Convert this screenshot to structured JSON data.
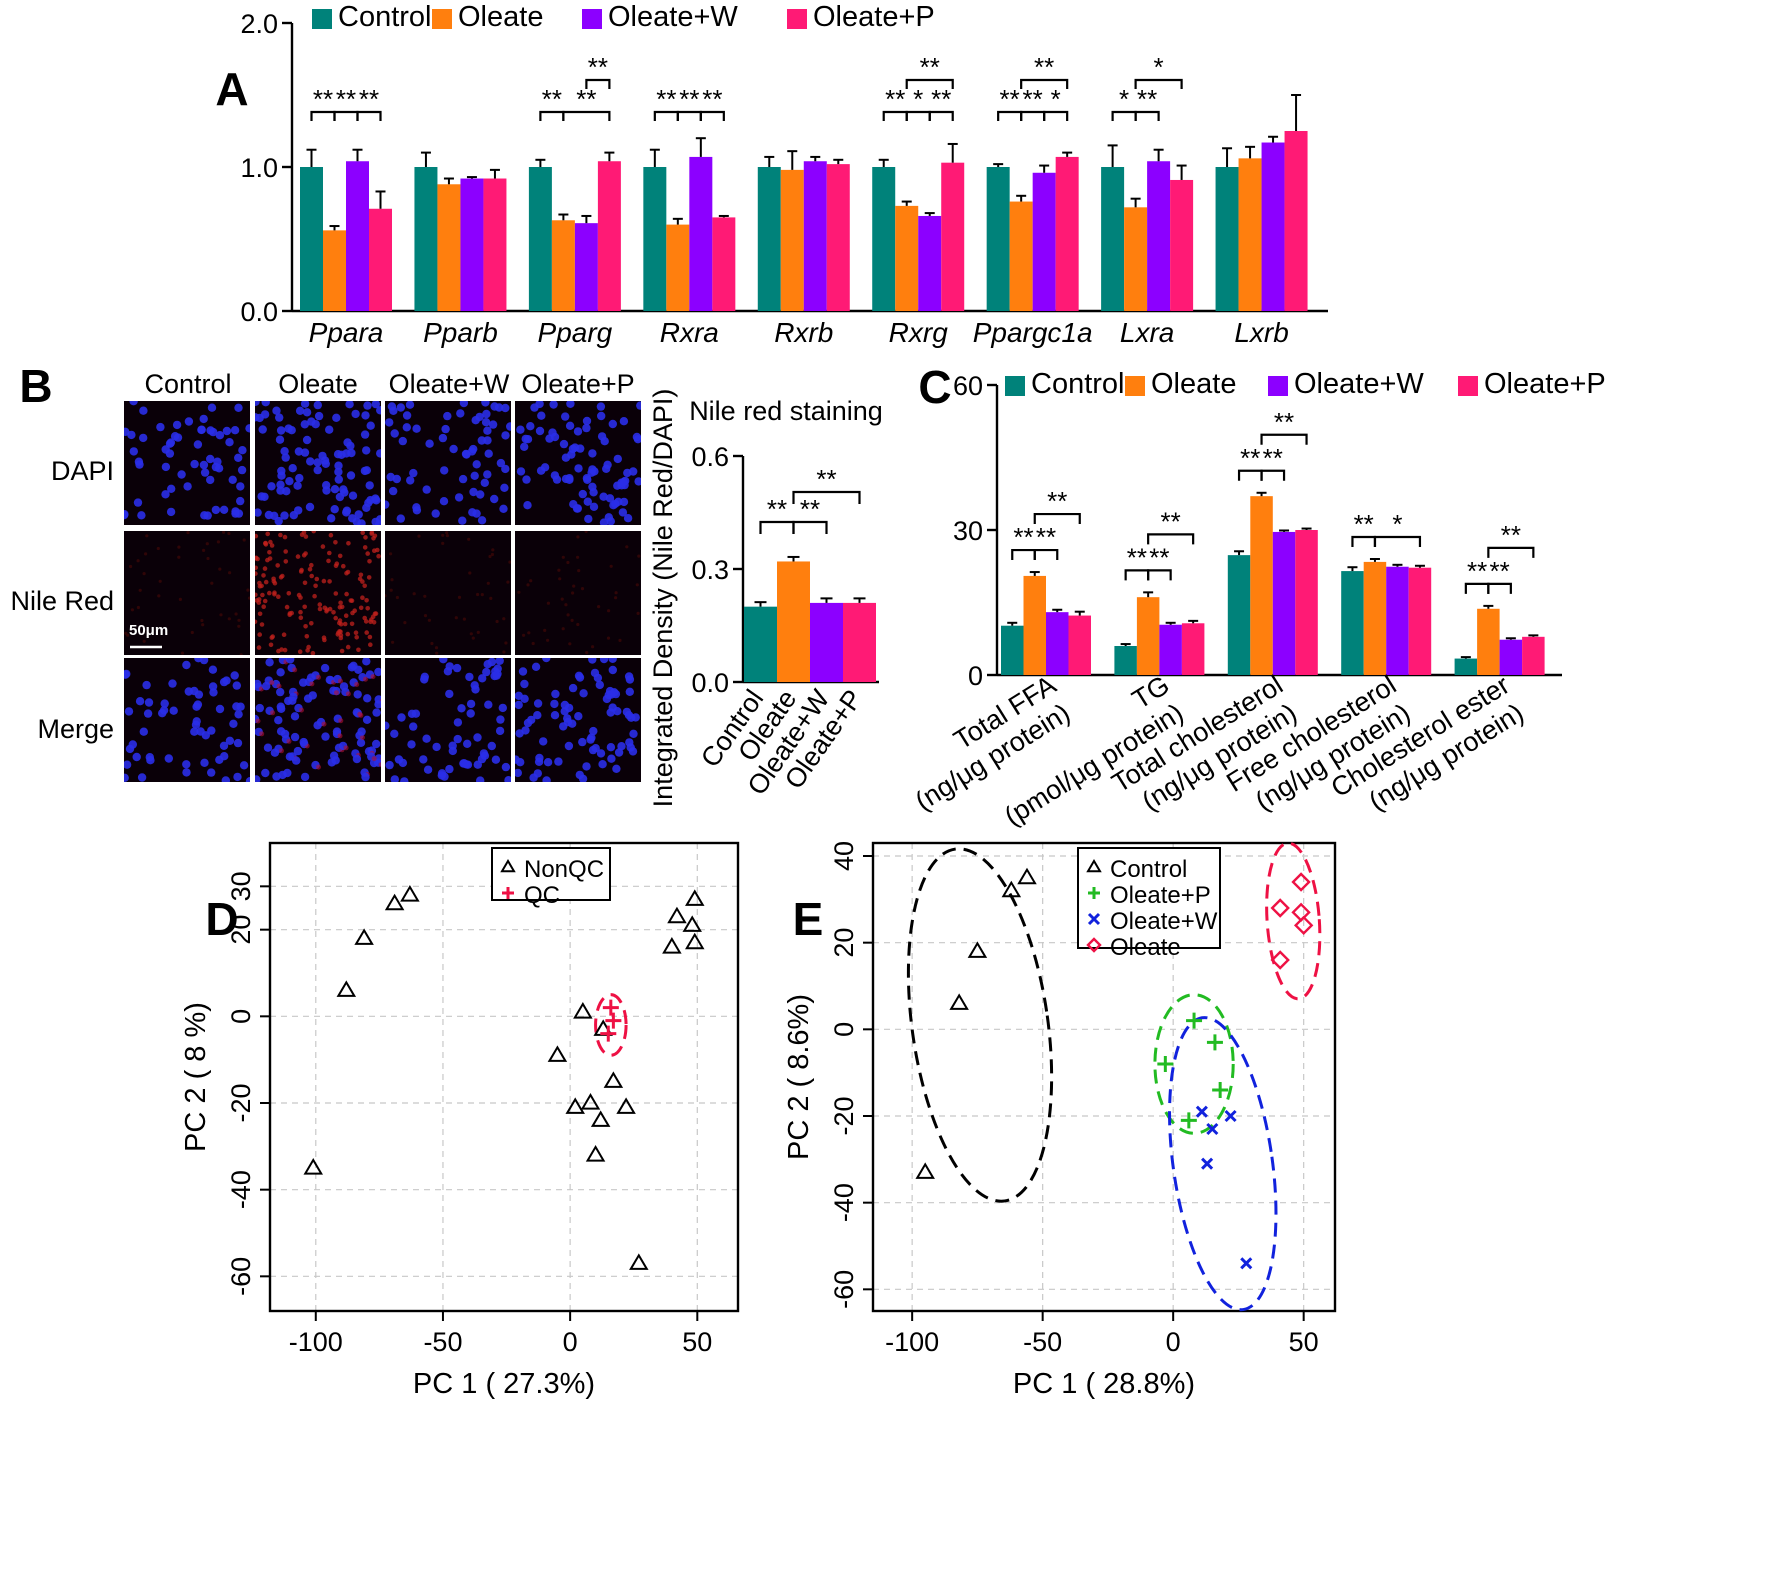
{
  "colors": {
    "control": "#00827a",
    "oleate": "#ff7f0e",
    "oleate_w": "#8c00ff",
    "oleate_p": "#ff1a75",
    "nonqc": "#000000",
    "qc": "#ee1144",
    "pca_control": "#000000",
    "pca_oleate_p": "#22bb22",
    "pca_oleate_w": "#1122dd",
    "pca_oleate": "#ee1144"
  },
  "chart_data": [
    {
      "id": "A",
      "type": "bar",
      "panel_label": "A",
      "legend": [
        "Control",
        "Oleate",
        "Oleate+W",
        "Oleate+P"
      ],
      "categories": [
        "Ppara",
        "Pparb",
        "Pparg",
        "Rxra",
        "Rxrb",
        "Rxrg",
        "Ppargc1a",
        "Lxra",
        "Lxrb"
      ],
      "ylim": [
        0,
        2.0
      ],
      "yticks": [
        "0.0",
        "1.0",
        "2.0"
      ],
      "series": [
        {
          "name": "Control",
          "values": [
            1.0,
            1.0,
            1.0,
            1.0,
            1.0,
            1.0,
            1.0,
            1.0,
            1.0
          ],
          "errors": [
            0.12,
            0.1,
            0.05,
            0.12,
            0.07,
            0.05,
            0.02,
            0.15,
            0.13
          ]
        },
        {
          "name": "Oleate",
          "values": [
            0.56,
            0.88,
            0.63,
            0.6,
            0.98,
            0.73,
            0.76,
            0.72,
            1.06
          ],
          "errors": [
            0.03,
            0.04,
            0.04,
            0.04,
            0.13,
            0.03,
            0.04,
            0.06,
            0.08
          ]
        },
        {
          "name": "Oleate+W",
          "values": [
            1.04,
            0.92,
            0.61,
            1.07,
            1.04,
            0.66,
            0.96,
            1.04,
            1.17
          ],
          "errors": [
            0.08,
            0.01,
            0.05,
            0.13,
            0.03,
            0.02,
            0.05,
            0.08,
            0.04
          ]
        },
        {
          "name": "Oleate+P",
          "values": [
            0.71,
            0.92,
            1.04,
            0.65,
            1.02,
            1.03,
            1.07,
            0.91,
            1.25
          ],
          "errors": [
            0.12,
            0.06,
            0.06,
            0.01,
            0.03,
            0.13,
            0.03,
            0.1,
            0.25
          ]
        }
      ],
      "significance": [
        {
          "cat": 0,
          "from": 0,
          "to": 1,
          "label": "**",
          "level": 0
        },
        {
          "cat": 0,
          "from": 1,
          "to": 2,
          "label": "**",
          "level": 0
        },
        {
          "cat": 0,
          "from": 2,
          "to": 3,
          "label": "**",
          "level": 0
        },
        {
          "cat": 2,
          "from": 0,
          "to": 1,
          "label": "**",
          "level": 0
        },
        {
          "cat": 2,
          "from": 1,
          "to": 3,
          "label": "**",
          "level": 0
        },
        {
          "cat": 2,
          "from": 2,
          "to": 3,
          "label": "**",
          "level": 1
        },
        {
          "cat": 3,
          "from": 0,
          "to": 1,
          "label": "**",
          "level": 0
        },
        {
          "cat": 3,
          "from": 1,
          "to": 2,
          "label": "**",
          "level": 0
        },
        {
          "cat": 3,
          "from": 2,
          "to": 3,
          "label": "**",
          "level": 0
        },
        {
          "cat": 5,
          "from": 0,
          "to": 1,
          "label": "**",
          "level": 0
        },
        {
          "cat": 5,
          "from": 1,
          "to": 2,
          "label": "*",
          "level": 0
        },
        {
          "cat": 5,
          "from": 2,
          "to": 3,
          "label": "**",
          "level": 0
        },
        {
          "cat": 5,
          "from": 1,
          "to": 3,
          "label": "**",
          "level": 1
        },
        {
          "cat": 6,
          "from": 0,
          "to": 1,
          "label": "**",
          "level": 0
        },
        {
          "cat": 6,
          "from": 1,
          "to": 2,
          "label": "**",
          "level": 0
        },
        {
          "cat": 6,
          "from": 2,
          "to": 3,
          "label": "*",
          "level": 0
        },
        {
          "cat": 6,
          "from": 1,
          "to": 3,
          "label": "**",
          "level": 1
        },
        {
          "cat": 7,
          "from": 0,
          "to": 1,
          "label": "*",
          "level": 0
        },
        {
          "cat": 7,
          "from": 1,
          "to": 2,
          "label": "**",
          "level": 0
        },
        {
          "cat": 7,
          "from": 1,
          "to": 3,
          "label": "*",
          "level": 1
        }
      ]
    },
    {
      "id": "B_micro",
      "type": "image-grid",
      "panel_label": "B",
      "columns": [
        "Control",
        "Oleate",
        "Oleate+W",
        "Oleate+P"
      ],
      "rows": [
        "DAPI",
        "Nile Red",
        "Merge"
      ],
      "scale_bar": "50μm"
    },
    {
      "id": "B_bar",
      "type": "bar",
      "title": "Nile red staining",
      "ylabel": "Integrated Density (Nile Red/DAPI)",
      "categories": [
        "Control",
        "Oleate",
        "Oleate+W",
        "Oleate+P"
      ],
      "values": [
        0.2,
        0.32,
        0.21,
        0.21
      ],
      "errors": [
        0.012,
        0.012,
        0.012,
        0.012
      ],
      "ylim": [
        0,
        0.6
      ],
      "yticks": [
        "0.0",
        "0.3",
        "0.6"
      ],
      "significance": [
        {
          "from": 0,
          "to": 1,
          "label": "**",
          "level": 0
        },
        {
          "from": 1,
          "to": 2,
          "label": "**",
          "level": 0
        },
        {
          "from": 1,
          "to": 3,
          "label": "**",
          "level": 1
        }
      ]
    },
    {
      "id": "C",
      "type": "bar",
      "panel_label": "C",
      "legend": [
        "Control",
        "Oleate",
        "Oleate+W",
        "Oleate+P"
      ],
      "categories": [
        [
          "Total FFA",
          "(ng/μg protein)"
        ],
        [
          "TG",
          "(pmol/μg protein)"
        ],
        [
          "Total cholesterol",
          "(ng/μg protein)"
        ],
        [
          "Free cholesterol",
          "(ng/μg protein)"
        ],
        [
          "Cholesterol ester",
          "(ng/μg protein)"
        ]
      ],
      "ylim": [
        0,
        60
      ],
      "yticks": [
        "0",
        "30",
        "60"
      ],
      "series": [
        {
          "name": "Control",
          "values": [
            10.2,
            6.0,
            24.8,
            21.5,
            3.4
          ],
          "errors": [
            0.6,
            0.4,
            0.8,
            0.8,
            0.3
          ]
        },
        {
          "name": "Oleate",
          "values": [
            20.5,
            16.1,
            37.0,
            23.4,
            13.7
          ],
          "errors": [
            0.8,
            1.0,
            0.7,
            0.6,
            0.6
          ]
        },
        {
          "name": "Oleate+W",
          "values": [
            13.0,
            10.4,
            29.6,
            22.4,
            7.3
          ],
          "errors": [
            0.5,
            0.4,
            0.3,
            0.4,
            0.3
          ]
        },
        {
          "name": "Oleate+P",
          "values": [
            12.3,
            10.7,
            30.0,
            22.2,
            7.9
          ],
          "errors": [
            0.8,
            0.5,
            0.3,
            0.4,
            0.3
          ]
        }
      ],
      "significance": [
        {
          "cat": 0,
          "from": 0,
          "to": 1,
          "label": "**",
          "level": 0
        },
        {
          "cat": 0,
          "from": 1,
          "to": 2,
          "label": "**",
          "level": 0
        },
        {
          "cat": 0,
          "from": 1,
          "to": 3,
          "label": "**",
          "level": 1
        },
        {
          "cat": 1,
          "from": 0,
          "to": 1,
          "label": "**",
          "level": 0
        },
        {
          "cat": 1,
          "from": 1,
          "to": 2,
          "label": "**",
          "level": 0
        },
        {
          "cat": 1,
          "from": 1,
          "to": 3,
          "label": "**",
          "level": 1
        },
        {
          "cat": 2,
          "from": 0,
          "to": 1,
          "label": "**",
          "level": 0
        },
        {
          "cat": 2,
          "from": 1,
          "to": 2,
          "label": "**",
          "level": 0
        },
        {
          "cat": 2,
          "from": 1,
          "to": 3,
          "label": "**",
          "level": 1
        },
        {
          "cat": 3,
          "from": 0,
          "to": 1,
          "label": "**",
          "level": 0
        },
        {
          "cat": 3,
          "from": 1,
          "to": 3,
          "label": "*",
          "level": 0
        },
        {
          "cat": 4,
          "from": 0,
          "to": 1,
          "label": "**",
          "level": 0
        },
        {
          "cat": 4,
          "from": 1,
          "to": 2,
          "label": "**",
          "level": 0
        },
        {
          "cat": 4,
          "from": 1,
          "to": 3,
          "label": "**",
          "level": 1
        }
      ]
    },
    {
      "id": "D",
      "type": "scatter",
      "panel_label": "D",
      "xlabel": "PC 1 ( 27.3%)",
      "ylabel": "PC 2 ( 8 %)",
      "xlim": [
        -118,
        66
      ],
      "ylim": [
        -68,
        40
      ],
      "xticks": [
        "-100",
        "-50",
        "0",
        "50"
      ],
      "yticks": [
        "-60",
        "-40",
        "-20",
        "0",
        "20",
        "30"
      ],
      "series": [
        {
          "name": "NonQC",
          "marker": "triangle",
          "points": [
            [
              -63,
              28
            ],
            [
              -69,
              26
            ],
            [
              -81,
              18
            ],
            [
              -88,
              6
            ],
            [
              -101,
              -35
            ],
            [
              49,
              27
            ],
            [
              42,
              23
            ],
            [
              48,
              21
            ],
            [
              49,
              17
            ],
            [
              40,
              16
            ],
            [
              5,
              1
            ],
            [
              -5,
              -9
            ],
            [
              13,
              -3
            ],
            [
              17,
              -15
            ],
            [
              2,
              -21
            ],
            [
              8,
              -20
            ],
            [
              12,
              -24
            ],
            [
              22,
              -21
            ],
            [
              10,
              -32
            ],
            [
              27,
              -57
            ]
          ]
        },
        {
          "name": "QC",
          "marker": "cross",
          "points": [
            [
              16,
              2
            ],
            [
              17,
              -1
            ],
            [
              15,
              -4
            ]
          ]
        }
      ],
      "ellipses": [
        {
          "series": "QC",
          "cx": 16,
          "cy": -2,
          "rx": 6,
          "ry": 7
        }
      ]
    },
    {
      "id": "E",
      "type": "scatter",
      "panel_label": "E",
      "xlabel": "PC 1 ( 28.8%)",
      "ylabel": "PC 2 ( 8.6%)",
      "xlim": [
        -115,
        62
      ],
      "ylim": [
        -65,
        43
      ],
      "xticks": [
        "-100",
        "-50",
        "0",
        "50"
      ],
      "yticks": [
        "-60",
        "-40",
        "-20",
        "0",
        "20",
        "40"
      ],
      "series": [
        {
          "name": "Control",
          "marker": "triangle",
          "points": [
            [
              -56,
              35
            ],
            [
              -62,
              32
            ],
            [
              -75,
              18
            ],
            [
              -82,
              6
            ],
            [
              -95,
              -33
            ]
          ]
        },
        {
          "name": "Oleate+P",
          "marker": "plus",
          "points": [
            [
              8,
              2
            ],
            [
              16,
              -3
            ],
            [
              -3,
              -8
            ],
            [
              18,
              -14
            ],
            [
              6,
              -21
            ]
          ]
        },
        {
          "name": "Oleate+W",
          "marker": "x",
          "points": [
            [
              11,
              -19
            ],
            [
              15,
              -23
            ],
            [
              22,
              -20
            ],
            [
              13,
              -31
            ],
            [
              28,
              -54
            ]
          ]
        },
        {
          "name": "Oleate",
          "marker": "diamond",
          "points": [
            [
              49,
              34
            ],
            [
              41,
              28
            ],
            [
              49,
              27
            ],
            [
              50,
              24
            ],
            [
              41,
              16
            ]
          ]
        }
      ],
      "ellipses": [
        {
          "series": "Control",
          "cx": -74,
          "cy": 1,
          "rx": 26,
          "ry": 41,
          "rot": -8
        },
        {
          "series": "Oleate+P",
          "cx": 8,
          "cy": -8,
          "rx": 15,
          "ry": 16,
          "rot": 0
        },
        {
          "series": "Oleate+W",
          "cx": 19,
          "cy": -31,
          "rx": 19,
          "ry": 34,
          "rot": -8
        },
        {
          "series": "Oleate",
          "cx": 46,
          "cy": 25,
          "rx": 10,
          "ry": 18,
          "rot": -4
        }
      ]
    }
  ]
}
